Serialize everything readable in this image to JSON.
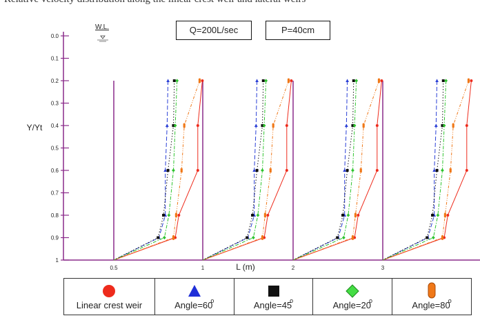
{
  "clipped_text": "Relative velocity distribution along the linear crest weir and lateral weirs",
  "chart_data": {
    "type": "line",
    "params": [
      "Q=200L/sec",
      "P=40cm"
    ],
    "water_level_label": "W.L.",
    "ylabel": "Y/Yt",
    "xlabel": "L (m)",
    "y_ticks": [
      "0.0",
      "0.1",
      "0.2",
      "0.3",
      "0.4",
      "0.5",
      "0.6",
      "0.7",
      "0.8",
      "0.9",
      "1"
    ],
    "x_ticks": [
      {
        "value": 0.5,
        "label": "0.5"
      },
      {
        "value": 1,
        "label": "1"
      },
      {
        "value": 2,
        "label": "2"
      },
      {
        "value": 3,
        "label": "3"
      }
    ],
    "xlim": [
      0.5,
      3.9
    ],
    "ylim": [
      0,
      1
    ],
    "y_inverted": true,
    "section_origins": [
      0.5,
      1,
      2,
      3
    ],
    "depths": [
      0.2,
      0.4,
      0.6,
      0.8,
      0.9,
      1.0
    ],
    "series": [
      {
        "name": "Linear crest weir",
        "color": "#ee2b1c",
        "dash": "solid",
        "marker": "circle",
        "offsets": [
          0.98,
          0.93,
          0.93,
          0.72,
          0.68,
          0
        ]
      },
      {
        "name": "Angle=60",
        "degree": "o",
        "color": "#2a3fd6",
        "dash": "long",
        "marker": "triangle",
        "offsets": [
          0.6,
          0.59,
          0.57,
          0.57,
          0.5,
          0
        ]
      },
      {
        "name": "Angle=45",
        "degree": "o",
        "color": "#111111",
        "dash": "dot",
        "marker": "square",
        "offsets": [
          0.67,
          0.66,
          0.6,
          0.55,
          0.49,
          0
        ]
      },
      {
        "name": "Angle=20",
        "degree": "o",
        "color": "#2fc42f",
        "dash": "dashdot",
        "marker": "diamond",
        "offsets": [
          0.7,
          0.68,
          0.66,
          0.61,
          0.56,
          0
        ]
      },
      {
        "name": "Angle=80",
        "degree": "o",
        "color": "#f07818",
        "dash": "dashdotdot",
        "marker": "pill",
        "offsets": [
          0.95,
          0.78,
          0.75,
          0.69,
          0.66,
          0
        ]
      }
    ]
  }
}
